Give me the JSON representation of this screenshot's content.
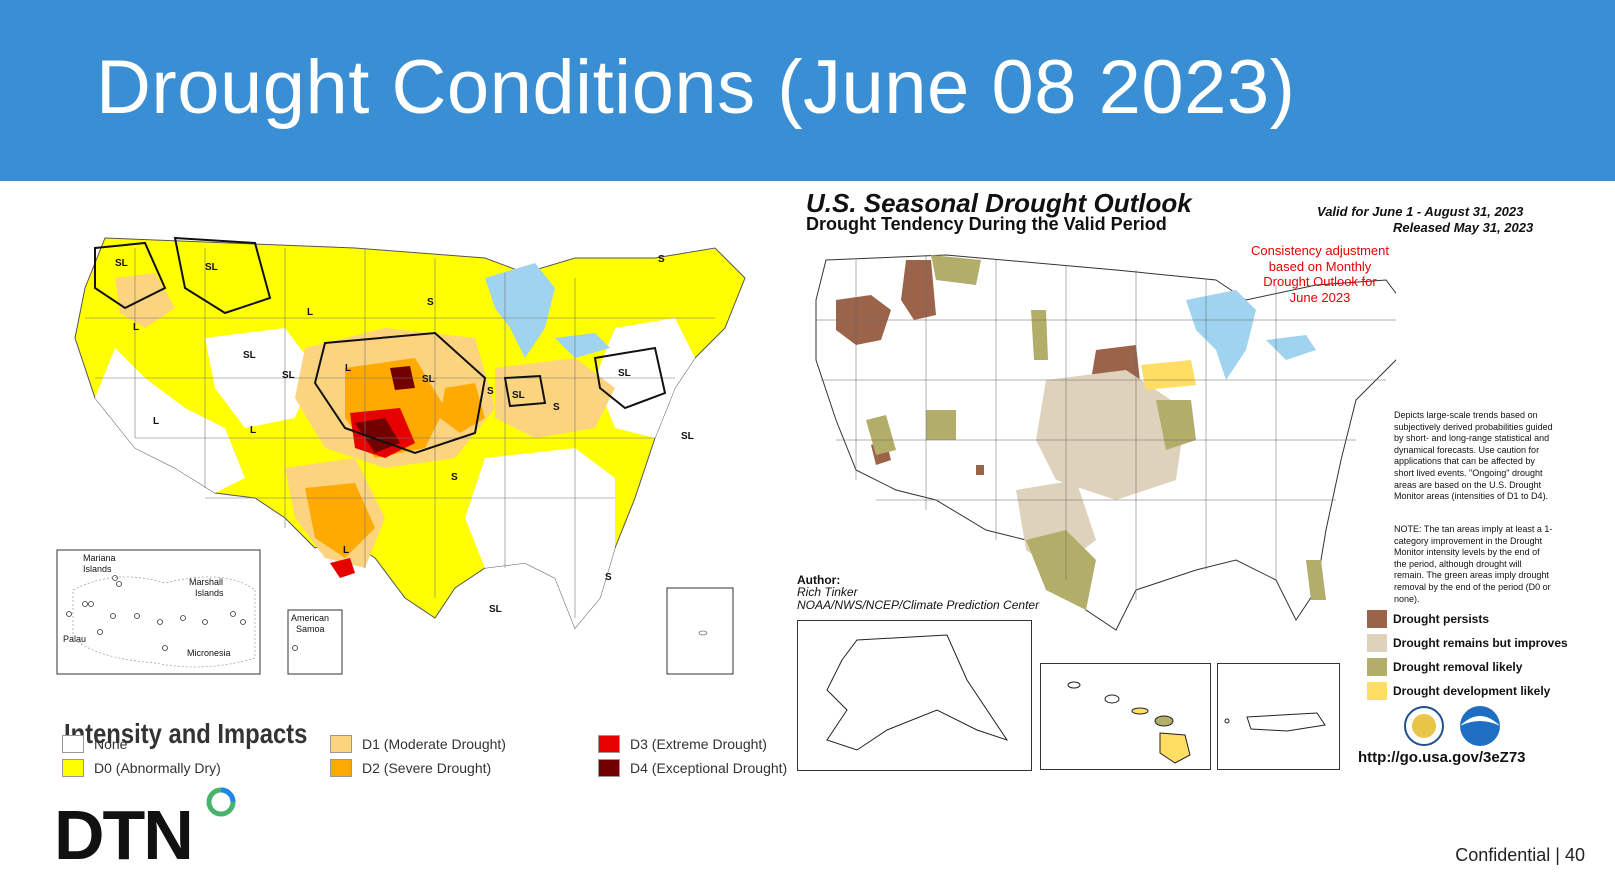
{
  "header": {
    "title": "Drought Conditions (June 08 2023)"
  },
  "colors": {
    "header_bg": "#3a8ed3",
    "none": "#ffffff",
    "d0": "#ffff00",
    "d1": "#fcd37f",
    "d2": "#ffaa00",
    "d3": "#e60000",
    "d4": "#730000",
    "persists": "#9b634a",
    "improves": "#ded2bc",
    "removal": "#b2ad69",
    "development": "#ffde63"
  },
  "left_map": {
    "labels": [
      "SL",
      "SL",
      "L",
      "L",
      "S",
      "SL",
      "SL",
      "L",
      "SL",
      "L",
      "L",
      "S",
      "SL",
      "S",
      "SL",
      "SL",
      "S",
      "S",
      "L",
      "SL",
      "S"
    ],
    "inset_pacific": {
      "mariana": "Mariana\nIslands",
      "marshall": "Marshall\nIslands",
      "palau": "Palau",
      "micronesia": "Micronesia"
    },
    "inset_samoa": "American\nSamoa"
  },
  "legend": {
    "title": "Intensity and Impacts",
    "items": [
      {
        "code": "None",
        "desc": ""
      },
      {
        "code": "D0",
        "desc": "(Abnormally Dry)"
      },
      {
        "code": "D1",
        "desc": "(Moderate Drought)"
      },
      {
        "code": "D2",
        "desc": "(Severe Drought)"
      },
      {
        "code": "D3",
        "desc": "(Extreme Drought)"
      },
      {
        "code": "D4",
        "desc": "(Exceptional Drought)"
      }
    ]
  },
  "right_map": {
    "title": "U.S. Seasonal Drought Outlook",
    "subtitle": "Drought Tendency During the Valid Period",
    "valid": "Valid for June 1 - August 31, 2023",
    "released": "Released May 31, 2023",
    "consistency_note": "Consistency adjustment\nbased on Monthly\nDrought Outlook for\nJune 2023",
    "description": "Depicts large-scale trends based on subjectively derived probabilities guided by short- and long-range statistical and dynamical forecasts. Use caution for applications that can be affected by short lived events. \"Ongoing\" drought areas are based on the U.S. Drought Monitor areas (intensities of D1 to D4).",
    "note": "NOTE: The tan areas imply at least a 1-category improvement in the Drought Monitor intensity levels by the end of the period, although drought will remain. The green areas imply drought removal by the end of the period (D0 or none).",
    "author_label": "Author:",
    "author_name": "Rich Tinker",
    "agency": "NOAA/NWS/NCEP/Climate Prediction Center",
    "legend": [
      {
        "label": "Drought persists",
        "color_key": "persists"
      },
      {
        "label": "Drought remains but improves",
        "color_key": "improves"
      },
      {
        "label": "Drought removal likely",
        "color_key": "removal"
      },
      {
        "label": "Drought development likely",
        "color_key": "development"
      }
    ],
    "url": "http://go.usa.gov/3eZ73"
  },
  "footer": {
    "confidential": "Confidential | 40",
    "logo": "DTN"
  }
}
